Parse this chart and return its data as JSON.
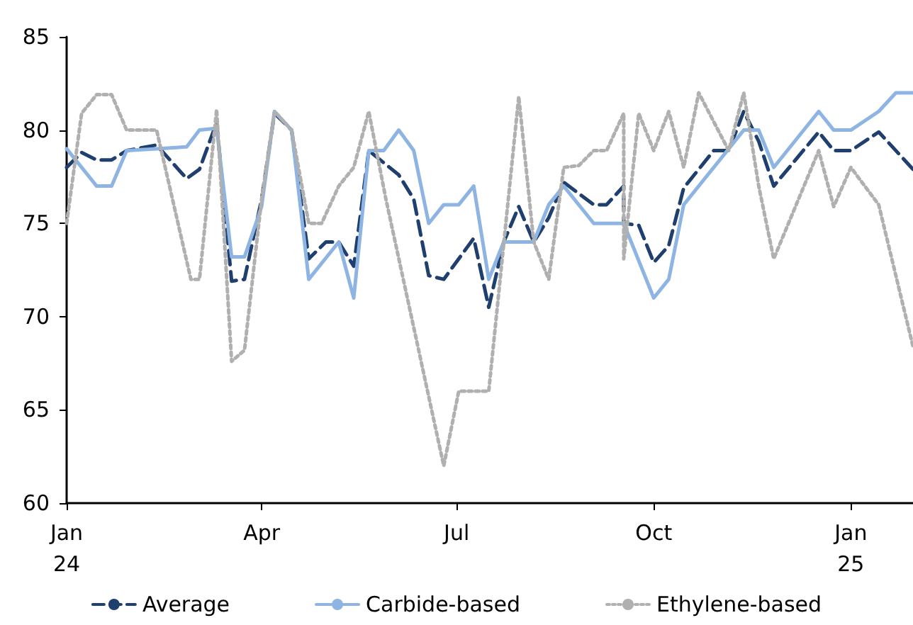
{
  "chart_data": {
    "type": "line",
    "xlim": [
      "2024-01-01",
      "2025-01-30"
    ],
    "xticks": [
      {
        "value": "2024-01-01",
        "label": "Jan\n24"
      },
      {
        "value": "2024-04-01",
        "label": "Apr"
      },
      {
        "value": "2024-07-01",
        "label": "Jul"
      },
      {
        "value": "2024-10-01",
        "label": "Oct"
      },
      {
        "value": "2025-01-01",
        "label": "Jan\n25"
      }
    ],
    "ylim": [
      60,
      85
    ],
    "yticks": [
      60,
      65,
      70,
      75,
      80,
      85
    ],
    "grid": false,
    "legend": "bottom",
    "marker": "none",
    "series": [
      {
        "name": "Average",
        "color": "#1f3f6e",
        "line_style": "dashed",
        "x": [
          "2024-01-01",
          "2024-01-08",
          "2024-01-15",
          "2024-01-22",
          "2024-01-29",
          "2024-02-12",
          "2024-02-26",
          "2024-03-03",
          "2024-03-11",
          "2024-03-18",
          "2024-03-24",
          "2024-04-01",
          "2024-04-07",
          "2024-04-15",
          "2024-04-23",
          "2024-05-01",
          "2024-05-07",
          "2024-05-14",
          "2024-05-21",
          "2024-06-04",
          "2024-06-11",
          "2024-06-18",
          "2024-06-25",
          "2024-07-09",
          "2024-07-16",
          "2024-07-23",
          "2024-07-30",
          "2024-08-06",
          "2024-08-13",
          "2024-08-20",
          "2024-09-03",
          "2024-09-09",
          "2024-09-17",
          "2024-09-17",
          "2024-09-24",
          "2024-10-01",
          "2024-10-08",
          "2024-10-15",
          "2024-10-29",
          "2024-11-05",
          "2024-11-12",
          "2024-11-19",
          "2024-11-26",
          "2024-12-17",
          "2024-12-24",
          "2025-01-01",
          "2025-01-14",
          "2025-01-30"
        ],
        "values": [
          78.0,
          78.8,
          78.4,
          78.4,
          78.9,
          79.2,
          77.4,
          77.9,
          80.4,
          71.9,
          72.0,
          76.3,
          80.9,
          80.0,
          73.1,
          74.0,
          74.0,
          72.7,
          78.9,
          77.6,
          76.3,
          72.2,
          72.0,
          74.2,
          70.5,
          74.0,
          75.9,
          74.0,
          75.3,
          77.2,
          76.0,
          76.0,
          77.0,
          75.0,
          74.9,
          72.9,
          73.8,
          76.9,
          78.9,
          78.9,
          81.0,
          79.4,
          77.0,
          79.9,
          78.9,
          78.9,
          79.9,
          77.9
        ]
      },
      {
        "name": "Carbide-based",
        "color": "#8db4e2",
        "line_style": "solid",
        "x": [
          "2024-01-01",
          "2024-01-15",
          "2024-01-22",
          "2024-01-29",
          "2024-02-12",
          "2024-02-26",
          "2024-03-03",
          "2024-03-11",
          "2024-03-18",
          "2024-03-24",
          "2024-04-01",
          "2024-04-07",
          "2024-04-15",
          "2024-04-23",
          "2024-05-07",
          "2024-05-14",
          "2024-05-21",
          "2024-05-28",
          "2024-06-04",
          "2024-06-11",
          "2024-06-18",
          "2024-06-25",
          "2024-07-02",
          "2024-07-09",
          "2024-07-16",
          "2024-07-23",
          "2024-08-06",
          "2024-08-13",
          "2024-08-20",
          "2024-09-03",
          "2024-09-17",
          "2024-10-01",
          "2024-10-08",
          "2024-10-15",
          "2024-11-12",
          "2024-11-19",
          "2024-11-26",
          "2024-12-17",
          "2024-12-24",
          "2025-01-01",
          "2025-01-14",
          "2025-01-22",
          "2025-01-30"
        ],
        "values": [
          79.0,
          77.0,
          77.0,
          78.9,
          79.0,
          79.1,
          80.0,
          80.1,
          73.2,
          73.2,
          75.9,
          81.0,
          80.0,
          72.0,
          74.0,
          71.0,
          78.9,
          78.9,
          80.0,
          78.9,
          75.0,
          76.0,
          76.0,
          77.0,
          72.0,
          74.0,
          74.0,
          76.0,
          77.0,
          75.0,
          75.0,
          71.0,
          72.0,
          76.0,
          80.0,
          80.0,
          78.0,
          81.0,
          80.0,
          80.0,
          81.0,
          82.0,
          82.0
        ]
      },
      {
        "name": "Ethylene-based",
        "color": "#b0b0b0",
        "line_style": "dotted",
        "x": [
          "2024-01-01",
          "2024-01-08",
          "2024-01-15",
          "2024-01-22",
          "2024-01-29",
          "2024-02-12",
          "2024-02-28",
          "2024-03-03",
          "2024-03-11",
          "2024-03-18",
          "2024-03-24",
          "2024-04-01",
          "2024-04-07",
          "2024-04-15",
          "2024-04-23",
          "2024-04-29",
          "2024-05-07",
          "2024-05-14",
          "2024-05-21",
          "2024-05-29",
          "2024-06-25",
          "2024-07-02",
          "2024-07-16",
          "2024-07-30",
          "2024-08-06",
          "2024-08-13",
          "2024-08-20",
          "2024-08-27",
          "2024-09-03",
          "2024-09-09",
          "2024-09-17",
          "2024-09-17",
          "2024-09-24",
          "2024-10-01",
          "2024-10-08",
          "2024-10-15",
          "2024-10-22",
          "2024-11-05",
          "2024-11-12",
          "2024-11-19",
          "2024-11-26",
          "2024-12-17",
          "2024-12-24",
          "2025-01-01",
          "2025-01-14",
          "2025-01-30"
        ],
        "values": [
          75.0,
          80.9,
          81.9,
          81.9,
          80.0,
          80.0,
          72.0,
          72.0,
          81.1,
          67.6,
          68.2,
          76.3,
          81.0,
          80.0,
          75.0,
          75.0,
          77.0,
          78.0,
          81.0,
          76.3,
          62.0,
          66.0,
          66.0,
          81.8,
          74.0,
          72.0,
          78.0,
          78.1,
          78.9,
          78.9,
          80.9,
          73.1,
          80.9,
          78.9,
          81.0,
          78.0,
          82.0,
          78.9,
          82.0,
          77.0,
          73.1,
          78.9,
          75.9,
          78.0,
          76.0,
          68.4
        ]
      }
    ]
  }
}
